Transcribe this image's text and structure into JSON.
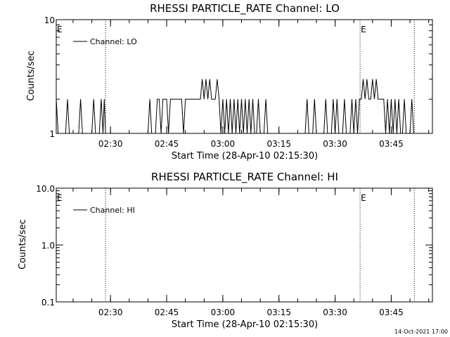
{
  "footer": {
    "timestamp": "14-Oct-2021 17:00"
  },
  "chart_data": [
    {
      "type": "line",
      "title": "RHESSI PARTICLE_RATE Channel: LO",
      "xlabel": "Start Time (28-Apr-10 02:15:30)",
      "ylabel": "Counts/sec",
      "yscale": "log",
      "ylim": [
        1,
        10
      ],
      "xlim": [
        "02:15:30",
        "03:56:00"
      ],
      "x_ticks": [
        "02:30",
        "02:45",
        "03:00",
        "03:15",
        "03:30",
        "03:45"
      ],
      "y_ticks": [
        {
          "value": 1,
          "label": "1"
        },
        {
          "value": 10,
          "label": "10"
        }
      ],
      "markers": [
        {
          "time": "02:15:30",
          "label": "E"
        },
        {
          "time": "03:36:40",
          "label": "E"
        }
      ],
      "dotted_lines": [
        "02:28:40",
        "03:36:40",
        "03:51:10"
      ],
      "legend": {
        "label": "Channel: LO",
        "position": "top-left"
      },
      "series": [
        {
          "name": "Channel: LO",
          "points": [
            [
              "02:15:30",
              2
            ],
            [
              "02:16:00",
              1
            ],
            [
              "02:18:00",
              1
            ],
            [
              "02:18:30",
              2
            ],
            [
              "02:19:00",
              1
            ],
            [
              "02:21:30",
              1
            ],
            [
              "02:22:00",
              2
            ],
            [
              "02:22:30",
              1
            ],
            [
              "02:25:00",
              1
            ],
            [
              "02:25:30",
              2
            ],
            [
              "02:26:00",
              1
            ],
            [
              "02:27:00",
              1
            ],
            [
              "02:27:30",
              2
            ],
            [
              "02:28:00",
              1
            ],
            [
              "02:28:20",
              2
            ],
            [
              "02:28:40",
              1
            ],
            [
              "02:40:00",
              1
            ],
            [
              "02:40:30",
              2
            ],
            [
              "02:41:00",
              1
            ],
            [
              "02:42:00",
              1
            ],
            [
              "02:42:30",
              2
            ],
            [
              "02:43:00",
              2
            ],
            [
              "02:43:30",
              1
            ],
            [
              "02:44:00",
              2
            ],
            [
              "02:45:00",
              2
            ],
            [
              "02:45:30",
              1
            ],
            [
              "02:46:00",
              2
            ],
            [
              "02:49:00",
              2
            ],
            [
              "02:49:30",
              1
            ],
            [
              "02:50:00",
              2
            ],
            [
              "02:52:00",
              2
            ],
            [
              "02:54:00",
              2
            ],
            [
              "02:54:30",
              3
            ],
            [
              "02:55:00",
              2
            ],
            [
              "02:55:30",
              3
            ],
            [
              "02:56:00",
              2
            ],
            [
              "02:56:30",
              3
            ],
            [
              "02:57:00",
              2
            ],
            [
              "02:58:00",
              2
            ],
            [
              "02:58:30",
              3
            ],
            [
              "02:59:00",
              2
            ],
            [
              "02:59:30",
              1
            ],
            [
              "03:00:00",
              2
            ],
            [
              "03:00:30",
              1
            ],
            [
              "03:01:00",
              2
            ],
            [
              "03:01:30",
              1
            ],
            [
              "03:02:00",
              2
            ],
            [
              "03:02:30",
              1
            ],
            [
              "03:03:00",
              2
            ],
            [
              "03:03:30",
              1
            ],
            [
              "03:04:00",
              2
            ],
            [
              "03:04:30",
              1
            ],
            [
              "03:05:00",
              2
            ],
            [
              "03:05:30",
              1
            ],
            [
              "03:06:00",
              2
            ],
            [
              "03:06:30",
              1
            ],
            [
              "03:07:00",
              2
            ],
            [
              "03:07:30",
              1
            ],
            [
              "03:08:00",
              2
            ],
            [
              "03:08:30",
              1
            ],
            [
              "03:09:00",
              1
            ],
            [
              "03:09:30",
              2
            ],
            [
              "03:10:00",
              1
            ],
            [
              "03:11:00",
              1
            ],
            [
              "03:11:30",
              2
            ],
            [
              "03:12:00",
              1
            ],
            [
              "03:22:00",
              1
            ],
            [
              "03:22:30",
              2
            ],
            [
              "03:23:00",
              1
            ],
            [
              "03:24:00",
              1
            ],
            [
              "03:24:30",
              2
            ],
            [
              "03:25:00",
              1
            ],
            [
              "03:27:00",
              1
            ],
            [
              "03:27:30",
              2
            ],
            [
              "03:28:00",
              1
            ],
            [
              "03:29:00",
              1
            ],
            [
              "03:29:30",
              2
            ],
            [
              "03:30:00",
              1
            ],
            [
              "03:30:30",
              2
            ],
            [
              "03:31:00",
              1
            ],
            [
              "03:32:00",
              1
            ],
            [
              "03:32:30",
              2
            ],
            [
              "03:33:00",
              1
            ],
            [
              "03:34:00",
              1
            ],
            [
              "03:34:30",
              2
            ],
            [
              "03:35:00",
              1
            ],
            [
              "03:35:30",
              2
            ],
            [
              "03:36:00",
              1
            ],
            [
              "03:36:30",
              2
            ],
            [
              "03:37:00",
              2
            ],
            [
              "03:37:30",
              3
            ],
            [
              "03:38:00",
              2
            ],
            [
              "03:38:30",
              3
            ],
            [
              "03:39:00",
              2
            ],
            [
              "03:39:30",
              2
            ],
            [
              "03:40:00",
              3
            ],
            [
              "03:40:30",
              2
            ],
            [
              "03:41:00",
              3
            ],
            [
              "03:41:30",
              2
            ],
            [
              "03:43:00",
              2
            ],
            [
              "03:43:30",
              1
            ],
            [
              "03:44:00",
              2
            ],
            [
              "03:44:30",
              1
            ],
            [
              "03:45:00",
              2
            ],
            [
              "03:45:30",
              1
            ],
            [
              "03:46:00",
              2
            ],
            [
              "03:46:30",
              1
            ],
            [
              "03:47:00",
              2
            ],
            [
              "03:47:30",
              1
            ],
            [
              "03:48:00",
              1
            ],
            [
              "03:48:30",
              2
            ],
            [
              "03:49:00",
              1
            ],
            [
              "03:50:00",
              1
            ],
            [
              "03:50:30",
              2
            ],
            [
              "03:51:00",
              1
            ]
          ]
        }
      ]
    },
    {
      "type": "line",
      "title": "RHESSI PARTICLE_RATE Channel: HI",
      "xlabel": "Start Time (28-Apr-10 02:15:30)",
      "ylabel": "Counts/sec",
      "yscale": "log",
      "ylim": [
        0.1,
        10
      ],
      "xlim": [
        "02:15:30",
        "03:56:00"
      ],
      "x_ticks": [
        "02:30",
        "02:45",
        "03:00",
        "03:15",
        "03:30",
        "03:45"
      ],
      "y_ticks": [
        {
          "value": 0.1,
          "label": "0.1"
        },
        {
          "value": 1,
          "label": "1.0"
        },
        {
          "value": 10,
          "label": "10.0"
        }
      ],
      "markers": [
        {
          "time": "02:15:30",
          "label": "E"
        },
        {
          "time": "03:36:40",
          "label": "E"
        }
      ],
      "dotted_lines": [
        "02:28:40",
        "03:36:40",
        "03:51:10"
      ],
      "legend": {
        "label": "Channel: HI",
        "position": "top-left"
      },
      "series": [
        {
          "name": "Channel: HI",
          "points": []
        }
      ]
    }
  ]
}
